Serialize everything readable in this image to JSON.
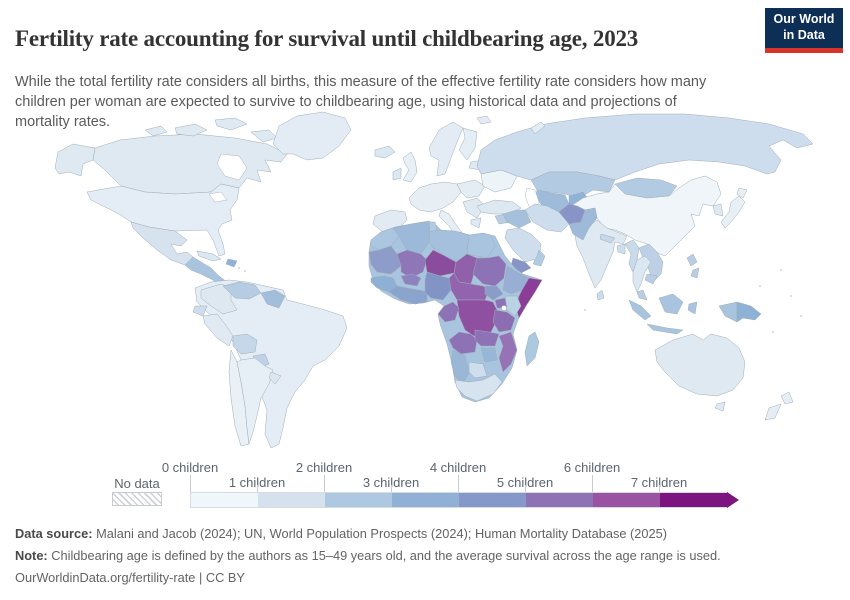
{
  "header": {
    "title": "Fertility rate accounting for survival until childbearing age, 2023",
    "logo": {
      "line1": "Our World",
      "line2": "in Data"
    }
  },
  "subtitle": "While the total fertility rate considers all births, this measure of the effective fertility rate considers how many children per woman are expected to survive to childbearing age, using historical data and projections of mortality rates.",
  "legend": {
    "no_data_label": "No data",
    "tick_labels": [
      "0 children",
      "1 children",
      "2 children",
      "3 children",
      "4 children",
      "5 children",
      "6 children",
      "7 children"
    ],
    "band_colors": [
      "#f0f7fa",
      "#d5e2ee",
      "#aec8e1",
      "#90b1d5",
      "#8697c9",
      "#8d73b5",
      "#9a53a3",
      "#7c1580"
    ]
  },
  "footer": {
    "data_source_label": "Data source:",
    "data_source": " Malani and Jacob (2024); UN, World Population Prospects (2024); Human Mortality Database (2025)",
    "note_label": "Note:",
    "note": " Childbearing age is defined by the authors as 15–49 years old, and the average survival across the age range is used.",
    "url": "OurWorldinData.org/fertility-rate",
    "separator": " | ",
    "license": "CC BY"
  },
  "chart_data": {
    "type": "choropleth_map",
    "title": "Fertility rate accounting for survival until childbearing age",
    "year": 2023,
    "unit": "children per woman (effective fertility rate)",
    "legend_bins": [
      "0–1",
      "1–2",
      "2–3",
      "3–4",
      "4–5",
      "5–6",
      "6–7",
      "7+"
    ],
    "bin_colors": [
      "#f0f7fa",
      "#d5e2ee",
      "#aec8e1",
      "#90b1d5",
      "#8697c9",
      "#8d73b5",
      "#9a53a3",
      "#7c1580"
    ],
    "no_data_style": "gray diagonal hatch",
    "regions": [
      {
        "id": "alaska",
        "label": "United States (Alaska)",
        "color": "#dee9f2",
        "bin": "1–2"
      },
      {
        "id": "canada",
        "label": "Canada",
        "color": "#dee9f2",
        "bin": "1–2"
      },
      {
        "id": "greenland",
        "label": "Greenland",
        "color": "#e3ecf4",
        "bin": "1–2"
      },
      {
        "id": "usa",
        "label": "United States",
        "color": "#e4edf5",
        "bin": "1–2"
      },
      {
        "id": "mexico",
        "label": "Mexico",
        "color": "#d6e3ef",
        "bin": "1–2"
      },
      {
        "id": "central-america",
        "label": "Central America",
        "color": "#a9c4de",
        "bin": "2–3"
      },
      {
        "id": "cuba",
        "label": "Cuba",
        "color": "#dce8f1",
        "bin": "1–2"
      },
      {
        "id": "hispaniola",
        "label": "Haiti / Dominican Republic",
        "color": "#8fb2d6",
        "bin": "3–4"
      },
      {
        "id": "sa-base",
        "label": "South America",
        "color": "#e4edf5",
        "bin": "1–2"
      },
      {
        "id": "colombia",
        "label": "Colombia",
        "color": "#dde8f1",
        "bin": "1–2"
      },
      {
        "id": "venezuela",
        "label": "Venezuela",
        "color": "#b5cce3",
        "bin": "2–3"
      },
      {
        "id": "guyanas",
        "label": "Guyana / Suriname",
        "color": "#a3bedb",
        "bin": "2–3"
      },
      {
        "id": "ecuador",
        "label": "Ecuador",
        "color": "#cfdeec",
        "bin": "1–2"
      },
      {
        "id": "peru",
        "label": "Peru",
        "color": "#e1eaf3",
        "bin": "1–2"
      },
      {
        "id": "brazil",
        "label": "Brazil",
        "color": "#e4edf5",
        "bin": "1–2"
      },
      {
        "id": "bolivia",
        "label": "Bolivia",
        "color": "#c6d7e9",
        "bin": "2–3"
      },
      {
        "id": "paraguay",
        "label": "Paraguay",
        "color": "#bed1e7",
        "bin": "2–3"
      },
      {
        "id": "chile",
        "label": "Chile",
        "color": "#e9f0f6",
        "bin": "1–2"
      },
      {
        "id": "argentina",
        "label": "Argentina",
        "color": "#e7eff6",
        "bin": "1–2"
      },
      {
        "id": "uruguay",
        "label": "Uruguay",
        "color": "#dce8f1",
        "bin": "1–2"
      },
      {
        "id": "iceland",
        "label": "Iceland",
        "color": "#dce8f1",
        "bin": "1–2"
      },
      {
        "id": "uk",
        "label": "United Kingdom",
        "color": "#e8f0f6",
        "bin": "1–2"
      },
      {
        "id": "ireland",
        "label": "Ireland",
        "color": "#dce8f1",
        "bin": "1–2"
      },
      {
        "id": "scandinavia",
        "label": "Norway / Sweden",
        "color": "#e3ecf4",
        "bin": "1–2"
      },
      {
        "id": "finland",
        "label": "Finland",
        "color": "#e6eef5",
        "bin": "1–2"
      },
      {
        "id": "baltics",
        "label": "Baltic states",
        "color": "#dfe9f2",
        "bin": "1–2"
      },
      {
        "id": "west-europe",
        "label": "Western Europe",
        "color": "#e7eff5",
        "bin": "1–2"
      },
      {
        "id": "iberia",
        "label": "Spain / Portugal",
        "color": "#e2ebf3",
        "bin": "1–2"
      },
      {
        "id": "italy",
        "label": "Italy",
        "color": "#e7eff5",
        "bin": "1–2"
      },
      {
        "id": "central-europe",
        "label": "Central Europe",
        "color": "#e4edf4",
        "bin": "1–2"
      },
      {
        "id": "balkans",
        "label": "Balkans",
        "color": "#dfe9f2",
        "bin": "1–2"
      },
      {
        "id": "greece",
        "label": "Greece",
        "color": "#dfe9f2",
        "bin": "1–2"
      },
      {
        "id": "ukraine",
        "label": "Ukraine",
        "color": "#edf4f8",
        "bin": "0–1"
      },
      {
        "id": "russia",
        "label": "Russia",
        "color": "#cedded",
        "bin": "1–2"
      },
      {
        "id": "kazakhstan",
        "label": "Kazakhstan",
        "color": "#b3cbe2",
        "bin": "2–3"
      },
      {
        "id": "central-asia",
        "label": "Uzbekistan / Turkmenistan",
        "color": "#9fbbda",
        "bin": "2–3"
      },
      {
        "id": "kyrgyz-tajik",
        "label": "Kyrgyzstan / Tajikistan",
        "color": "#8fb2d6",
        "bin": "3–4"
      },
      {
        "id": "mongolia",
        "label": "Mongolia",
        "color": "#b3cbe2",
        "bin": "2–3"
      },
      {
        "id": "china",
        "label": "China",
        "color": "#eff5f9",
        "bin": "0–1"
      },
      {
        "id": "korea",
        "label": "Korea",
        "color": "#dfe9f2",
        "bin": "1–2"
      },
      {
        "id": "japan",
        "label": "Japan",
        "color": "#e8f0f6",
        "bin": "1–2"
      },
      {
        "id": "afghanistan",
        "label": "Afghanistan",
        "color": "#8894c8",
        "bin": "4–5"
      },
      {
        "id": "pakistan",
        "label": "Pakistan",
        "color": "#9fbad9",
        "bin": "3–4"
      },
      {
        "id": "iran",
        "label": "Iran",
        "color": "#cedded",
        "bin": "1–2"
      },
      {
        "id": "iraq",
        "label": "Iraq",
        "color": "#a5c0dc",
        "bin": "2–3"
      },
      {
        "id": "turkey",
        "label": "Turkey",
        "color": "#dde8f1",
        "bin": "1–2"
      },
      {
        "id": "syria",
        "label": "Syria",
        "color": "#b9cee4",
        "bin": "2–3"
      },
      {
        "id": "saudi",
        "label": "Saudi Arabia",
        "color": "#cfdeec",
        "bin": "1–2"
      },
      {
        "id": "yemen",
        "label": "Yemen",
        "color": "#8894c8",
        "bin": "4–5"
      },
      {
        "id": "oman",
        "label": "Oman",
        "color": "#b3cbe2",
        "bin": "2–3"
      },
      {
        "id": "india",
        "label": "India",
        "color": "#dfe9f2",
        "bin": "1–2"
      },
      {
        "id": "nepal",
        "label": "Nepal",
        "color": "#c6d7e9",
        "bin": "2–3"
      },
      {
        "id": "bangladesh",
        "label": "Bangladesh",
        "color": "#cfdeec",
        "bin": "1–2"
      },
      {
        "id": "sri-lanka",
        "label": "Sri Lanka",
        "color": "#cddcea",
        "bin": "1–2"
      },
      {
        "id": "myanmar",
        "label": "Myanmar",
        "color": "#c9daea",
        "bin": "2–3"
      },
      {
        "id": "thailand",
        "label": "Thailand",
        "color": "#dce8f1",
        "bin": "1–2"
      },
      {
        "id": "laos-vietnam",
        "label": "Laos / Vietnam",
        "color": "#bdd0e6",
        "bin": "2–3"
      },
      {
        "id": "cambodia",
        "label": "Cambodia",
        "color": "#b9cee4",
        "bin": "2–3"
      },
      {
        "id": "malaysia",
        "label": "Malaysia",
        "color": "#b9cee4",
        "bin": "2–3"
      },
      {
        "id": "sumatra",
        "label": "Indonesia (Sumatra)",
        "color": "#a9c4de",
        "bin": "2–3"
      },
      {
        "id": "java",
        "label": "Indonesia (Java)",
        "color": "#a9c4de",
        "bin": "2–3"
      },
      {
        "id": "borneo",
        "label": "Indonesia (Borneo)",
        "color": "#a9c4de",
        "bin": "2–3"
      },
      {
        "id": "sulawesi",
        "label": "Indonesia (Sulawesi)",
        "color": "#a9c4de",
        "bin": "2–3"
      },
      {
        "id": "philippines",
        "label": "Philippines",
        "color": "#b9cee4",
        "bin": "2–3"
      },
      {
        "id": "new-guinea-west",
        "label": "Indonesia (Papua)",
        "color": "#a9c4de",
        "bin": "2–3"
      },
      {
        "id": "png",
        "label": "Papua New Guinea",
        "color": "#8eb2d6",
        "bin": "3–4"
      },
      {
        "id": "africa-base",
        "label": "Africa (various)",
        "color": "#a9c4de",
        "bin": "2–3"
      },
      {
        "id": "morocco",
        "label": "Morocco",
        "color": "#abc6e0",
        "bin": "2–3"
      },
      {
        "id": "mauritania",
        "label": "Mauritania",
        "color": "#8e9cc9",
        "bin": "4–5"
      },
      {
        "id": "algeria",
        "label": "Algeria",
        "color": "#9cb9da",
        "bin": "2–3"
      },
      {
        "id": "tunisia",
        "label": "Tunisia",
        "color": "#b3cbe2",
        "bin": "2–3"
      },
      {
        "id": "libya",
        "label": "Libya",
        "color": "#a5c0dc",
        "bin": "2–3"
      },
      {
        "id": "egypt",
        "label": "Egypt",
        "color": "#a9c4de",
        "bin": "2–3"
      },
      {
        "id": "mali",
        "label": "Mali",
        "color": "#8f76b7",
        "bin": "5–6"
      },
      {
        "id": "niger",
        "label": "Niger",
        "color": "#8a4d9e",
        "bin": "6–7"
      },
      {
        "id": "chad",
        "label": "Chad",
        "color": "#9160ab",
        "bin": "5–6"
      },
      {
        "id": "sudan",
        "label": "Sudan",
        "color": "#8d72b6",
        "bin": "5–6"
      },
      {
        "id": "senegal-guinea",
        "label": "Senegal / Guinea",
        "color": "#8eb0d4",
        "bin": "3–4"
      },
      {
        "id": "wafrica-coast",
        "label": "Côte d'Ivoire / Ghana",
        "color": "#8ba4cd",
        "bin": "3–4"
      },
      {
        "id": "burkina",
        "label": "Burkina Faso",
        "color": "#8d82c0",
        "bin": "4–5"
      },
      {
        "id": "nigeria",
        "label": "Nigeria",
        "color": "#8294c6",
        "bin": "4–5"
      },
      {
        "id": "cameroon-car",
        "label": "Cameroon / Central African Republic",
        "color": "#9264ad",
        "bin": "5–6"
      },
      {
        "id": "south-sudan",
        "label": "South Sudan",
        "color": "#8a9cc8",
        "bin": "4–5"
      },
      {
        "id": "ethiopia",
        "label": "Ethiopia",
        "color": "#98aed4",
        "bin": "3–4"
      },
      {
        "id": "somalia",
        "label": "Somalia",
        "color": "#8b3d97",
        "bin": "6–7"
      },
      {
        "id": "kenya",
        "label": "Kenya",
        "color": "#b9d2e4",
        "bin": "2–3"
      },
      {
        "id": "uganda",
        "label": "Uganda",
        "color": "#8d72b6",
        "bin": "5–6"
      },
      {
        "id": "drc",
        "label": "Democratic Republic of Congo",
        "color": "#9050a2",
        "bin": "6–7"
      },
      {
        "id": "gabon-congo",
        "label": "Gabon / Congo",
        "color": "#8d72b6",
        "bin": "5–6"
      },
      {
        "id": "angola",
        "label": "Angola",
        "color": "#8d72b6",
        "bin": "5–6"
      },
      {
        "id": "zambia",
        "label": "Zambia",
        "color": "#8d72b6",
        "bin": "5–6"
      },
      {
        "id": "tanzania",
        "label": "Tanzania",
        "color": "#8d6db2",
        "bin": "5–6"
      },
      {
        "id": "mozambique",
        "label": "Mozambique / Malawi",
        "color": "#9673b5",
        "bin": "5–6"
      },
      {
        "id": "zimbabwe",
        "label": "Zimbabwe",
        "color": "#98b6d7",
        "bin": "3–4"
      },
      {
        "id": "namibia",
        "label": "Namibia",
        "color": "#9ab7d8",
        "bin": "3–4"
      },
      {
        "id": "botswana",
        "label": "Botswana",
        "color": "#cfdeec",
        "bin": "1–2"
      },
      {
        "id": "south-africa",
        "label": "South Africa",
        "color": "#d7e3ef",
        "bin": "1–2"
      },
      {
        "id": "madagascar",
        "label": "Madagascar",
        "color": "#abc9e0",
        "bin": "2–3"
      },
      {
        "id": "australia",
        "label": "Australia",
        "color": "#dfe9f2",
        "bin": "1–2"
      },
      {
        "id": "tasmania",
        "label": "Australia (Tasmania)",
        "color": "#dfe9f2",
        "bin": "1–2"
      },
      {
        "id": "nz-north",
        "label": "New Zealand (North Island)",
        "color": "#e6eef5",
        "bin": "1–2"
      },
      {
        "id": "nz-south",
        "label": "New Zealand (South Island)",
        "color": "#e6eef5",
        "bin": "1–2"
      }
    ]
  }
}
